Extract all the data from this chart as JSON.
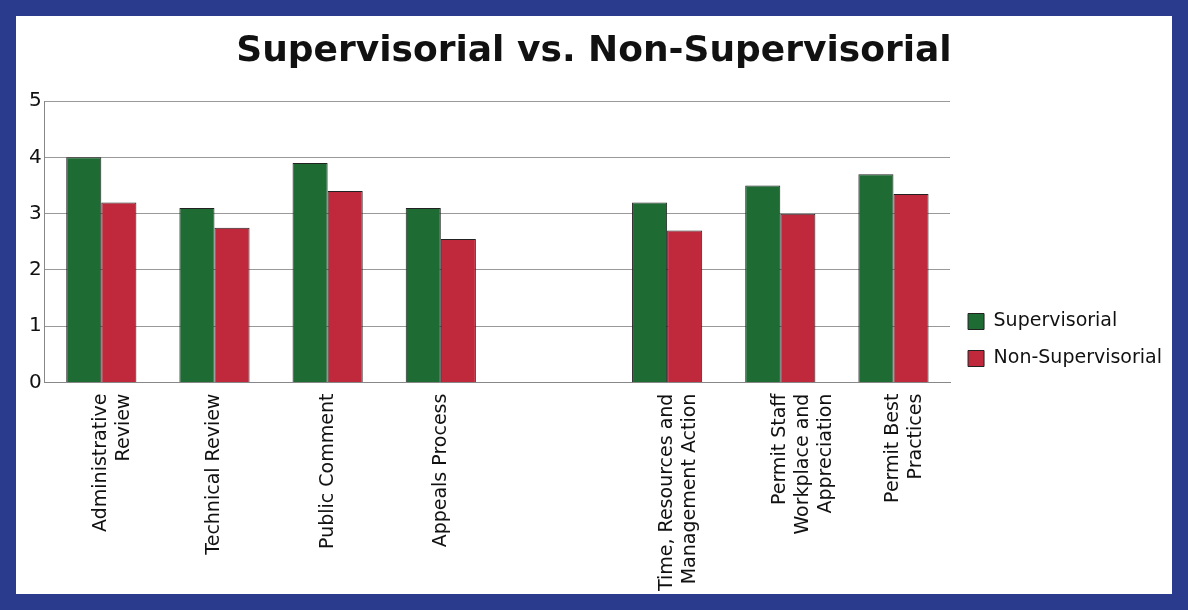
{
  "chart_data": {
    "type": "bar",
    "title": "Supervisorial vs. Non-Supervisorial",
    "categories": [
      "Administrative Review",
      "Technical Review",
      "Public Comment",
      "Appeals Process",
      null,
      "Time, Resources and Management Action",
      "Permit Staff Workplace and Appreciation",
      "Permit Best Practices"
    ],
    "series": [
      {
        "name": "Supervisorial",
        "color": "#1e6b34",
        "values": [
          4.0,
          3.1,
          3.9,
          3.1,
          null,
          3.2,
          3.5,
          3.7
        ]
      },
      {
        "name": "Non-Supervisorial",
        "color": "#c0283c",
        "values": [
          3.2,
          2.75,
          3.4,
          2.55,
          null,
          2.7,
          3.0,
          3.35
        ]
      }
    ],
    "ylim": [
      0,
      5
    ],
    "yticks": [
      0,
      1,
      2,
      3,
      4,
      5
    ],
    "grid": "y",
    "legend": "right"
  }
}
